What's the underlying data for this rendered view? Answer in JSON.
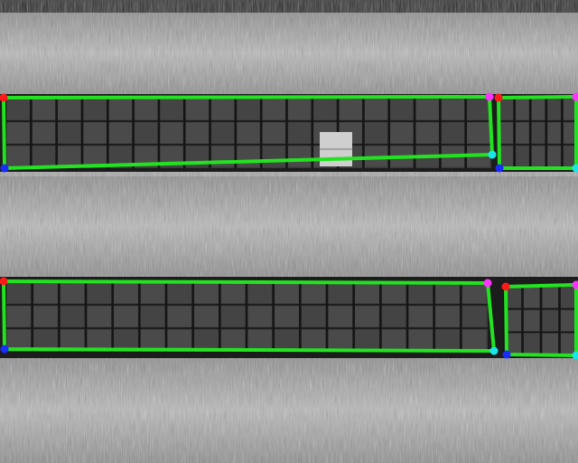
{
  "scene": {
    "description_free": true,
    "colors": {
      "ground_light": "#d9d9d9",
      "ground_mid": "#9a9a9a",
      "ground_dark": "#6e6e6e",
      "panel_bg": "#3a3a3a",
      "panel_cell": "#4a4a4a",
      "panel_line": "#151515",
      "highlight_cell": "#cfcfcf",
      "outline": "#22e31f",
      "corner_tl": "#ff1a1a",
      "corner_bl": "#1a2cff",
      "corner_tr": "#ff33ff",
      "corner_br": "#19e6e6"
    },
    "panel_rows": [
      {
        "name": "upper-row",
        "segments": [
          {
            "name": "upper-left-array",
            "columns": 19,
            "rows": 3
          },
          {
            "name": "upper-right-array",
            "columns": 5,
            "rows": 3
          }
        ]
      },
      {
        "name": "lower-row",
        "segments": [
          {
            "name": "lower-left-array",
            "columns": 18,
            "rows": 3
          },
          {
            "name": "lower-right-array",
            "columns": 4,
            "rows": 3
          }
        ]
      }
    ]
  }
}
